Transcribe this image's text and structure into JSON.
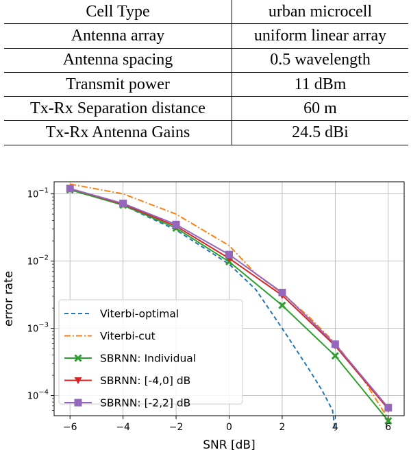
{
  "table": {
    "rows": [
      [
        "Cell Type",
        "urban microcell"
      ],
      [
        "Antenna array",
        "uniform linear array"
      ],
      [
        "Antenna spacing",
        "0.5 wavelength"
      ],
      [
        "Transmit power",
        "11 dBm"
      ],
      [
        "Tx-Rx Separation distance",
        "60 m"
      ],
      [
        "Tx-Rx Antenna Gains",
        "24.5 dBi"
      ]
    ]
  },
  "chart_data": {
    "type": "line",
    "title": "",
    "xlabel": "SNR [dB]",
    "ylabel": "error rate",
    "xlim": [
      -6.6,
      6.6
    ],
    "ylim_log10": [
      -4.3,
      -0.82
    ],
    "yscale": "log",
    "grid": true,
    "legend_position": "lower-left",
    "xticks": [
      -6,
      -4,
      -2,
      0,
      2,
      4,
      6
    ],
    "xtick_labels": [
      "−6",
      "−4",
      "−2",
      "0",
      "2",
      "4",
      "6"
    ],
    "yticks": [
      {
        "value": 0.1,
        "base": "10",
        "exp": "−1"
      },
      {
        "value": 0.01,
        "base": "10",
        "exp": "−2"
      },
      {
        "value": 0.001,
        "base": "10",
        "exp": "−3"
      },
      {
        "value": 0.0001,
        "base": "10",
        "exp": "−4"
      }
    ],
    "series": [
      {
        "name": "Viterbi-optimal",
        "color": "#1f77b4",
        "style": "dashed",
        "marker": "none",
        "x": [
          -6,
          -4,
          -2,
          0,
          1,
          2,
          3,
          3.5,
          3.9,
          4
        ],
        "y": [
          0.12,
          0.068,
          0.029,
          0.009,
          0.0038,
          0.001,
          0.00025,
          0.00012,
          6e-05,
          3e-05
        ]
      },
      {
        "name": "Viterbi-cut",
        "color": "#ff7f0e",
        "style": "dashdot",
        "marker": "none",
        "x": [
          -6,
          -4,
          -2,
          0,
          1,
          2,
          3,
          4,
          5,
          6
        ],
        "y": [
          0.14,
          0.1,
          0.05,
          0.017,
          0.0065,
          0.0033,
          0.0015,
          0.0006,
          0.00019,
          4.5e-05
        ]
      },
      {
        "name": "SBRNN: Individual",
        "color": "#2ca02c",
        "style": "solid",
        "marker": "x",
        "x": [
          -6,
          -4,
          -2,
          0,
          2,
          4,
          6
        ],
        "y": [
          0.115,
          0.068,
          0.031,
          0.0098,
          0.0022,
          0.00039,
          4.2e-05
        ]
      },
      {
        "name": "SBRNN: [-4,0] dB",
        "color": "#d62728",
        "style": "solid",
        "marker": "triangle-down",
        "x": [
          -6,
          -4,
          -2,
          0,
          2,
          4,
          6
        ],
        "y": [
          0.12,
          0.07,
          0.033,
          0.011,
          0.0031,
          0.00055,
          6.3e-05
        ]
      },
      {
        "name": "SBRNN: [-2,2] dB",
        "color": "#9467bd",
        "style": "solid",
        "marker": "square",
        "x": [
          -6,
          -4,
          -2,
          0,
          2,
          4,
          6
        ],
        "y": [
          0.12,
          0.072,
          0.035,
          0.0125,
          0.0034,
          0.00058,
          6.6e-05
        ]
      }
    ]
  }
}
